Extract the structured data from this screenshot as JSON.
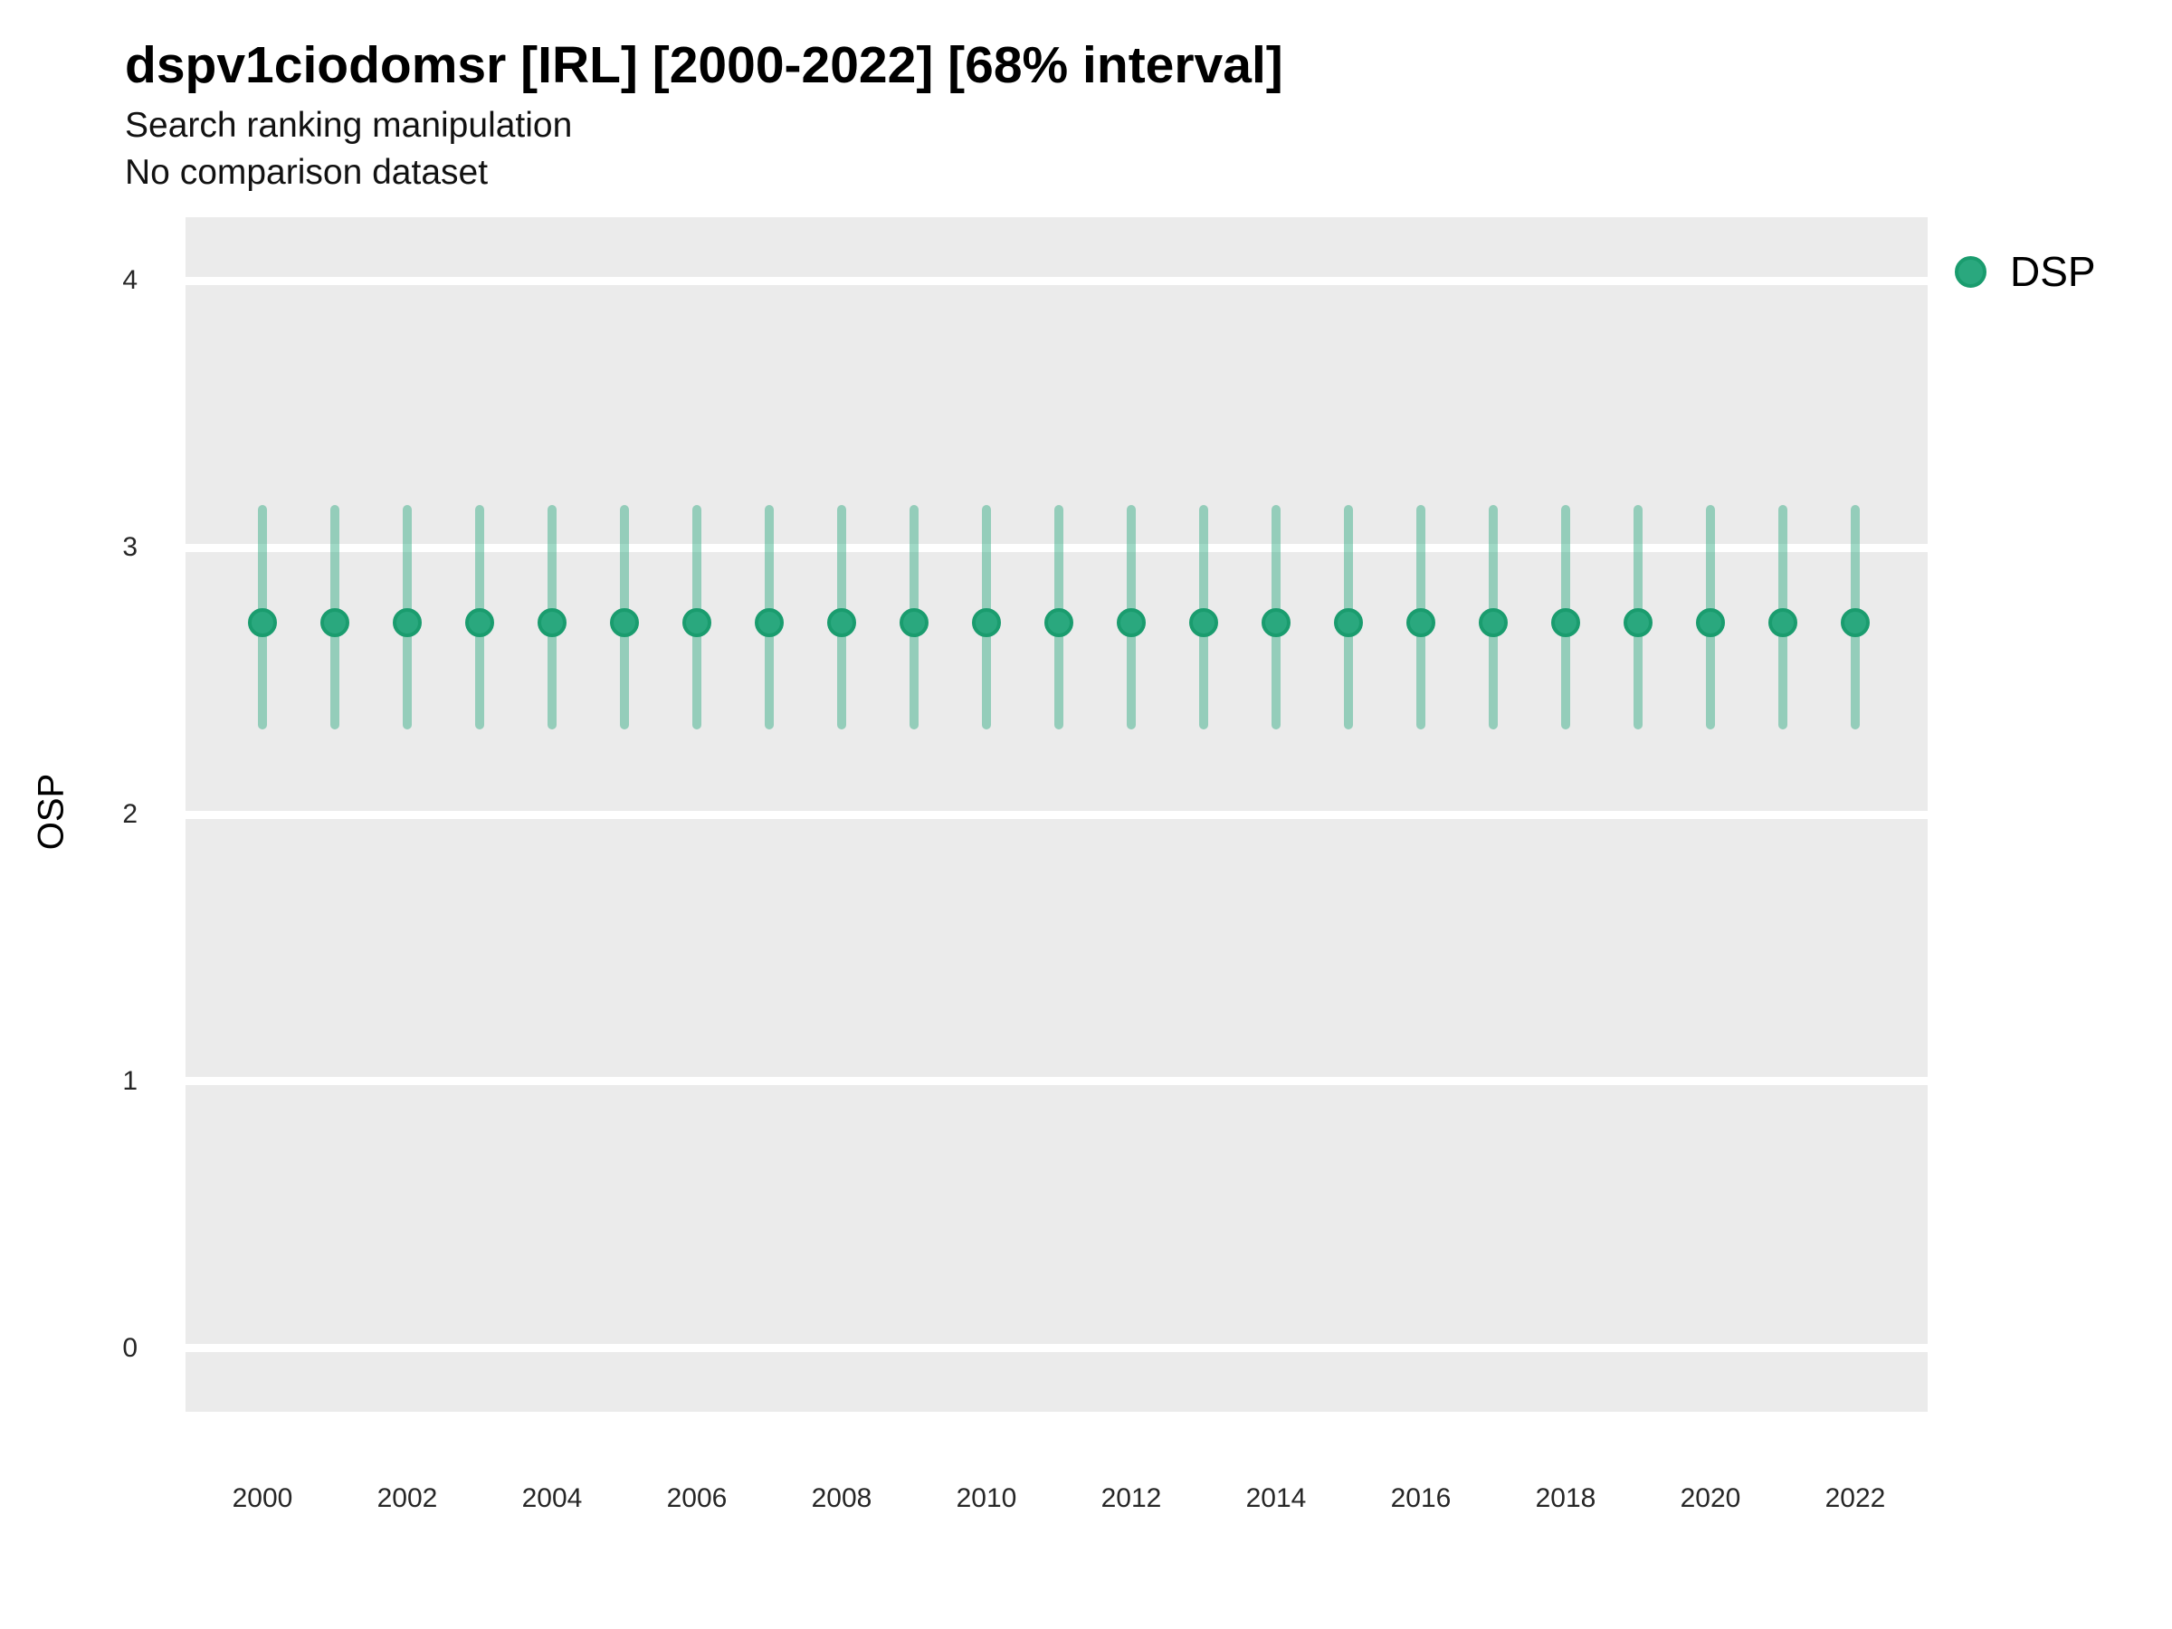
{
  "header": {
    "title": "dspv1ciodomsr [IRL] [2000-2022] [68% interval]",
    "subtitle1": "Search ranking manipulation",
    "subtitle2": "No comparison dataset"
  },
  "legend": {
    "position": "top-right",
    "items": [
      {
        "label": "DSP",
        "color": "#2aa87e",
        "stroke": "#1a9c6e"
      }
    ]
  },
  "colors": {
    "accent_green": "#2aa87e",
    "point_stroke": "#1a9c6e",
    "interval_bar": "rgba(42,168,126,0.45)",
    "panel_bg": "#ebebeb",
    "gridline": "#ffffff",
    "title_text": "#000000",
    "tick_text": "#262626"
  },
  "chart_data": {
    "type": "scatter",
    "title": "dspv1ciodomsr [IRL] [2000-2022] [68% interval]",
    "subtitle": [
      "Search ranking manipulation",
      "No comparison dataset"
    ],
    "interval_label": "68% interval",
    "xlabel": "",
    "ylabel": "OSP",
    "legend_position": "top-right",
    "grid": "major-horizontal-white-on-gray",
    "x": [
      2000,
      2001,
      2002,
      2003,
      2004,
      2005,
      2006,
      2007,
      2008,
      2009,
      2010,
      2011,
      2012,
      2013,
      2014,
      2015,
      2016,
      2017,
      2018,
      2019,
      2020,
      2021,
      2022
    ],
    "series": [
      {
        "name": "DSP",
        "color": "#2aa87e",
        "stroke": "#1a9c6e",
        "bar_color": "rgba(42,168,126,0.45)",
        "values": [
          2.72,
          2.72,
          2.72,
          2.72,
          2.72,
          2.72,
          2.72,
          2.72,
          2.72,
          2.72,
          2.72,
          2.72,
          2.72,
          2.72,
          2.72,
          2.72,
          2.72,
          2.72,
          2.72,
          2.72,
          2.72,
          2.72,
          2.72
        ],
        "lower": [
          2.32,
          2.32,
          2.32,
          2.32,
          2.32,
          2.32,
          2.32,
          2.32,
          2.32,
          2.32,
          2.32,
          2.32,
          2.32,
          2.32,
          2.32,
          2.32,
          2.32,
          2.32,
          2.32,
          2.32,
          2.32,
          2.32,
          2.32
        ],
        "upper": [
          3.16,
          3.16,
          3.16,
          3.16,
          3.16,
          3.16,
          3.16,
          3.16,
          3.16,
          3.16,
          3.16,
          3.16,
          3.16,
          3.16,
          3.16,
          3.16,
          3.16,
          3.16,
          3.16,
          3.16,
          3.16,
          3.16,
          3.16
        ]
      }
    ],
    "xticks": [
      2000,
      2002,
      2004,
      2006,
      2008,
      2010,
      2012,
      2014,
      2016,
      2018,
      2020,
      2022
    ],
    "yticks": [
      0,
      1,
      2,
      3,
      4
    ],
    "xlim": [
      1998.9375,
      2023.0
    ],
    "ylim": [
      -0.2373,
      4.2373
    ]
  }
}
